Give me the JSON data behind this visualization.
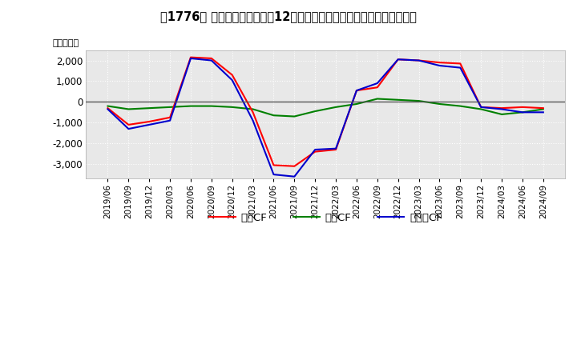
{
  "title": "　1776、 キャッシュフローの12か月移動合計の対前年同期増減額の推移",
  "title2": "　1776　キャッシュフローの12か月移動合計の対前年同期増減額の推移",
  "ylabel": "（百万円）",
  "ylim": [
    -3700,
    2500
  ],
  "yticks": [
    -3000,
    -2000,
    -1000,
    0,
    1000,
    2000
  ],
  "legend_labels": [
    "営業CF",
    "投資CF",
    "フリーCF"
  ],
  "legend_colors": [
    "#ff0000",
    "#008000",
    "#0000cd"
  ],
  "dates": [
    "2019/06",
    "2019/09",
    "2019/12",
    "2020/03",
    "2020/06",
    "2020/09",
    "2020/12",
    "2021/03",
    "2021/06",
    "2021/09",
    "2021/12",
    "2022/03",
    "2022/06",
    "2022/09",
    "2022/12",
    "2023/03",
    "2023/06",
    "2023/09",
    "2023/12",
    "2024/03",
    "2024/06",
    "2024/09"
  ],
  "operating_cf": [
    -300,
    -1100,
    -950,
    -750,
    2150,
    2100,
    1300,
    -500,
    -3050,
    -3100,
    -2400,
    -2300,
    550,
    700,
    2050,
    2000,
    1900,
    1850,
    -250,
    -300,
    -250,
    -300
  ],
  "investing_cf": [
    -200,
    -350,
    -300,
    -250,
    -200,
    -200,
    -250,
    -350,
    -650,
    -700,
    -450,
    -250,
    -100,
    150,
    100,
    50,
    -100,
    -200,
    -350,
    -600,
    -500,
    -350
  ],
  "free_cf": [
    -350,
    -1300,
    -1100,
    -900,
    2100,
    2000,
    1050,
    -900,
    -3500,
    -3600,
    -2300,
    -2250,
    550,
    900,
    2050,
    2000,
    1750,
    1650,
    -250,
    -350,
    -500,
    -500
  ],
  "background_color": "#ffffff",
  "plot_bg_color": "#e8e8e8",
  "grid_color": "#ffffff",
  "line_width": 1.5
}
